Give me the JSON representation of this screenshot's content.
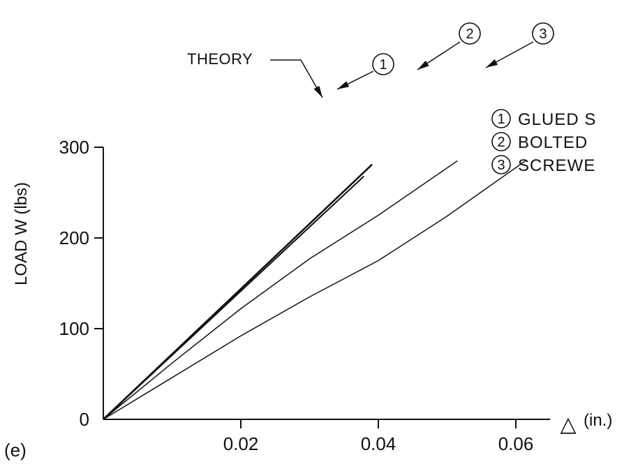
{
  "chart_data": {
    "type": "line",
    "panel_label": "(e)",
    "xlabel_symbol": "△",
    "xlabel": "(in.)",
    "ylabel": "LOAD W (lbs)",
    "xlim": [
      0,
      0.065
    ],
    "ylim": [
      0,
      300
    ],
    "x_ticks": [
      0.02,
      0.04,
      0.06
    ],
    "x_tick_labels": [
      "0.02",
      "0.04",
      "0.06"
    ],
    "y_ticks": [
      0,
      100,
      200,
      300
    ],
    "y_tick_labels": [
      "0",
      "100",
      "200",
      "300"
    ],
    "grid": false,
    "theory_label": "THEORY",
    "series": [
      {
        "key": "theory",
        "x": [
          0,
          0.0391
        ],
        "y": [
          0,
          281
        ]
      },
      {
        "key": "1",
        "marker_text": "1",
        "x": [
          0,
          0.0379
        ],
        "y": [
          0,
          268
        ]
      },
      {
        "key": "2",
        "marker_text": "2",
        "x": [
          0,
          0.01,
          0.02,
          0.03,
          0.04,
          0.0515
        ],
        "y": [
          0,
          62,
          122,
          177,
          225,
          285
        ]
      },
      {
        "key": "3",
        "marker_text": "3",
        "x": [
          0,
          0.01,
          0.02,
          0.03,
          0.04,
          0.05,
          0.0614
        ],
        "y": [
          0,
          46,
          92,
          135,
          175,
          224,
          285
        ]
      }
    ],
    "legend": {
      "placement": "right",
      "entries": [
        {
          "number": "1",
          "text": "GLUED S"
        },
        {
          "number": "2",
          "text": "BOLTED"
        },
        {
          "number": "3",
          "text": "SCREWE"
        }
      ]
    }
  }
}
